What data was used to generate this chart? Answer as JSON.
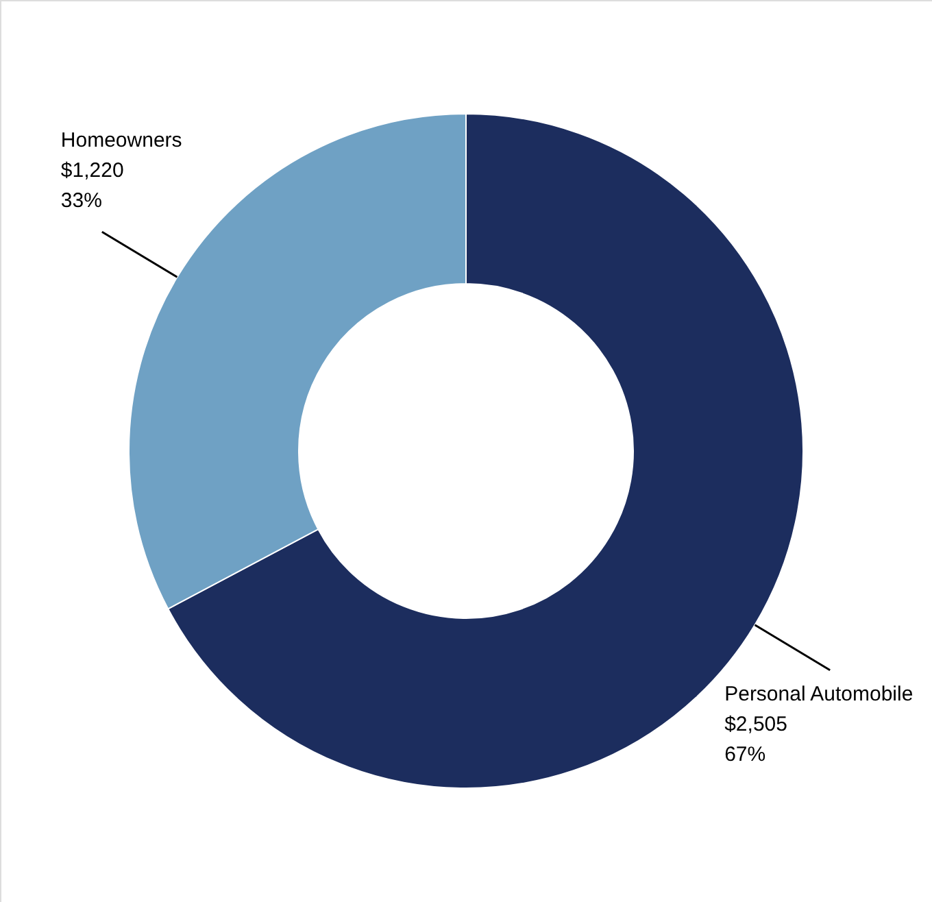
{
  "chart_data": {
    "type": "donut",
    "categories": [
      "Personal Automobile",
      "Homeowners"
    ],
    "values": [
      2505,
      1220
    ],
    "value_labels": [
      "$2,505\n67%",
      "$1,220\n33%"
    ],
    "colors": [
      "#1c2d5e",
      "#6fa1c4"
    ]
  }
}
